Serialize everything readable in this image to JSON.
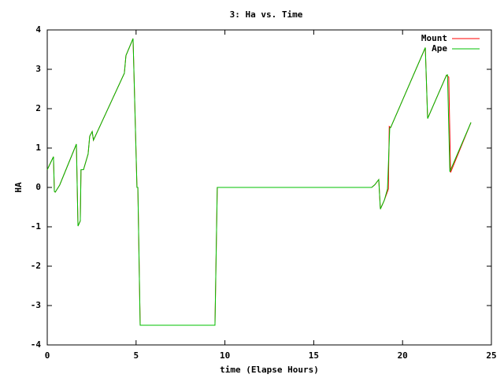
{
  "chart_data": {
    "type": "line",
    "title": "3: Ha vs. Time",
    "x_label": "time (Elapse Hours)",
    "y_label": "HA",
    "xlim": [
      0,
      25
    ],
    "xticks": [
      0,
      5,
      10,
      15,
      20,
      25
    ],
    "ylim": [
      -4,
      4
    ],
    "yticks": [
      -4,
      -3,
      -2,
      -1,
      0,
      1,
      2,
      3,
      4
    ],
    "legend": "top-right",
    "series": [
      {
        "name": "Mount",
        "color": "#ff0000",
        "x": [
          0,
          0.35,
          0.4,
          0.45,
          0.7,
          1.64,
          1.73,
          1.86,
          1.9,
          2.04,
          2.3,
          2.39,
          2.53,
          2.6,
          4.34,
          4.43,
          4.83,
          5.05,
          5.1,
          5.23,
          9.44,
          9.57,
          18.26,
          18.44,
          18.66,
          18.75,
          18.97,
          19.2,
          19.25,
          19.33,
          21.28,
          21.41,
          22.47,
          22.6,
          22.7,
          23.85
        ],
        "values": [
          0.45,
          0.78,
          -0.1,
          -0.12,
          0.06,
          1.1,
          -0.98,
          -0.85,
          0.45,
          0.45,
          0.85,
          1.3,
          1.42,
          1.2,
          2.9,
          3.35,
          3.78,
          0,
          0,
          -3.5,
          -3.5,
          0,
          0,
          0.07,
          0.2,
          -0.55,
          -0.33,
          -0.04,
          1.55,
          1.52,
          3.55,
          1.75,
          2.85,
          2.8,
          0.38,
          1.65
        ]
      },
      {
        "name": "Ape",
        "color": "#00c000",
        "x": [
          0,
          0.35,
          0.4,
          0.45,
          0.7,
          1.64,
          1.73,
          1.86,
          1.9,
          2.04,
          2.3,
          2.39,
          2.53,
          2.6,
          4.34,
          4.43,
          4.83,
          5.05,
          5.1,
          5.23,
          9.44,
          9.57,
          18.26,
          18.44,
          18.66,
          18.75,
          18.97,
          19.15,
          19.28,
          19.33,
          21.28,
          21.41,
          22.47,
          22.53,
          22.66,
          23.85
        ],
        "values": [
          0.45,
          0.78,
          -0.1,
          -0.12,
          0.06,
          1.1,
          -0.98,
          -0.85,
          0.45,
          0.45,
          0.85,
          1.3,
          1.42,
          1.2,
          2.9,
          3.35,
          3.78,
          0,
          0,
          -3.5,
          -3.5,
          0,
          0,
          0.07,
          0.2,
          -0.55,
          -0.33,
          -0.04,
          1.52,
          1.52,
          3.55,
          1.75,
          2.85,
          2.86,
          0.4,
          1.65
        ]
      }
    ]
  }
}
